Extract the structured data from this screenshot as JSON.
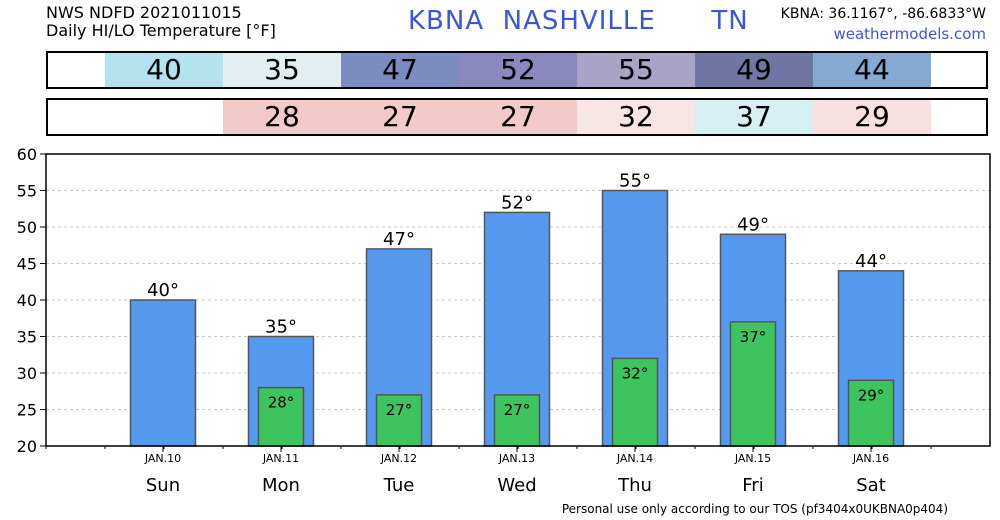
{
  "header": {
    "line1": "NWS NDFD 2021011015",
    "line2": "Daily HI/LO Temperature [°F]",
    "station": "KBNA  NASHVILLE      TN",
    "coords": "KBNA: 36.1167°, -86.6833°W",
    "site": "weathermodels.com"
  },
  "hi_strip": [
    {
      "value": "40",
      "color": "#b3e3ee"
    },
    {
      "value": "35",
      "color": "#e2eef0"
    },
    {
      "value": "47",
      "color": "#7a8cc0"
    },
    {
      "value": "52",
      "color": "#8a88bf"
    },
    {
      "value": "55",
      "color": "#a9a3c8"
    },
    {
      "value": "49",
      "color": "#7175a3"
    },
    {
      "value": "44",
      "color": "#84aad3"
    }
  ],
  "lo_strip": [
    {
      "value": "",
      "color": "#ffffff"
    },
    {
      "value": "28",
      "color": "#f2caca"
    },
    {
      "value": "27",
      "color": "#f2caca"
    },
    {
      "value": "27",
      "color": "#f2caca"
    },
    {
      "value": "32",
      "color": "#f8e6e6"
    },
    {
      "value": "37",
      "color": "#d6f0f1"
    },
    {
      "value": "29",
      "color": "#f8e0e0"
    }
  ],
  "chart_data": {
    "type": "bar",
    "categories": [
      "JAN.10",
      "JAN.11",
      "JAN.12",
      "JAN.13",
      "JAN.14",
      "JAN.15",
      "JAN.16"
    ],
    "days": [
      "Sun",
      "Mon",
      "Tue",
      "Wed",
      "Thu",
      "Fri",
      "Sat"
    ],
    "series": [
      {
        "values": [
          40,
          35,
          47,
          52,
          55,
          49,
          44
        ],
        "labels": [
          "40°",
          "35°",
          "47°",
          "52°",
          "55°",
          "49°",
          "44°"
        ],
        "color": "#5599ee"
      },
      {
        "values": [
          null,
          28,
          27,
          27,
          32,
          37,
          29
        ],
        "labels": [
          "",
          "28°",
          "27°",
          "27°",
          "32°",
          "37°",
          "29°"
        ],
        "color": "#3ec45e"
      }
    ],
    "ylim": [
      20,
      60
    ],
    "yticks": [
      20,
      25,
      30,
      35,
      40,
      45,
      50,
      55,
      60
    ],
    "grid": true
  },
  "footer": "Personal use only according to our TOS (pf3404x0UKBNA0p404)"
}
